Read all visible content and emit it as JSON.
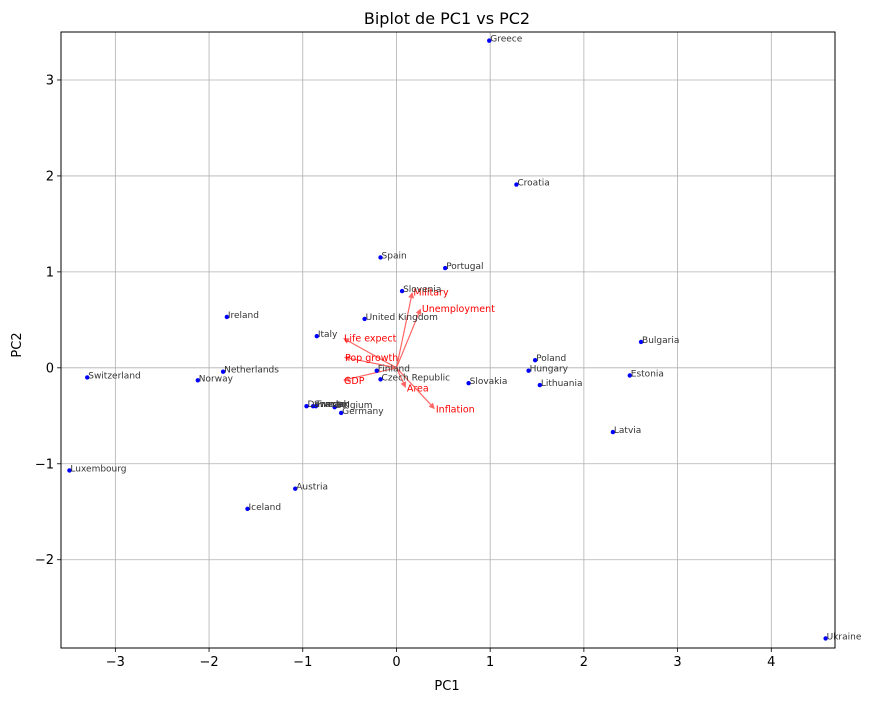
{
  "chart_data": {
    "type": "scatter",
    "title": "Biplot de PC1 vs PC2",
    "xlabel": "PC1",
    "ylabel": "PC2",
    "xlim": [
      -3.58,
      4.68
    ],
    "ylim": [
      -2.92,
      3.5
    ],
    "xticks": [
      -3,
      -2,
      -1,
      0,
      1,
      2,
      3,
      4
    ],
    "yticks": [
      -2,
      -1,
      0,
      1,
      2,
      3
    ],
    "xtick_labels": [
      "−3",
      "−2",
      "−1",
      "0",
      "1",
      "2",
      "3",
      "4"
    ],
    "ytick_labels": [
      "−2",
      "−1",
      "0",
      "1",
      "2",
      "3"
    ],
    "grid": true,
    "point_color": "#0000ff",
    "arrow_color": "#ff6666",
    "arrow_label_color": "#ff0000",
    "points": [
      {
        "label": "Greece",
        "x": 0.99,
        "y": 3.41
      },
      {
        "label": "Croatia",
        "x": 1.28,
        "y": 1.91
      },
      {
        "label": "Spain",
        "x": -0.17,
        "y": 1.15
      },
      {
        "label": "Portugal",
        "x": 0.52,
        "y": 1.04
      },
      {
        "label": "Slovenia",
        "x": 0.06,
        "y": 0.8
      },
      {
        "label": "United Kingdom",
        "x": -0.34,
        "y": 0.51
      },
      {
        "label": "Ireland",
        "x": -1.81,
        "y": 0.53
      },
      {
        "label": "Italy",
        "x": -0.85,
        "y": 0.33
      },
      {
        "label": "Bulgaria",
        "x": 2.61,
        "y": 0.27
      },
      {
        "label": "Poland",
        "x": 1.48,
        "y": 0.08
      },
      {
        "label": "Hungary",
        "x": 1.41,
        "y": -0.03
      },
      {
        "label": "Estonia",
        "x": 2.49,
        "y": -0.08
      },
      {
        "label": "Finland",
        "x": -0.21,
        "y": -0.03
      },
      {
        "label": "Czech Republic",
        "x": -0.17,
        "y": -0.12
      },
      {
        "label": "Slovakia",
        "x": 0.77,
        "y": -0.16
      },
      {
        "label": "Lithuania",
        "x": 1.53,
        "y": -0.18
      },
      {
        "label": "Netherlands",
        "x": -1.85,
        "y": -0.04
      },
      {
        "label": "Switzerland",
        "x": -3.3,
        "y": -0.1
      },
      {
        "label": "Norway",
        "x": -2.12,
        "y": -0.13
      },
      {
        "label": "Denmark",
        "x": -0.96,
        "y": -0.4
      },
      {
        "label": "Sweden",
        "x": -0.89,
        "y": -0.4
      },
      {
        "label": "France",
        "x": -0.86,
        "y": -0.4
      },
      {
        "label": "Belgium",
        "x": -0.66,
        "y": -0.41
      },
      {
        "label": "Germany",
        "x": -0.59,
        "y": -0.47
      },
      {
        "label": "Latvia",
        "x": 2.31,
        "y": -0.67
      },
      {
        "label": "Luxembourg",
        "x": -3.49,
        "y": -1.07
      },
      {
        "label": "Austria",
        "x": -1.08,
        "y": -1.26
      },
      {
        "label": "Iceland",
        "x": -1.59,
        "y": -1.47
      },
      {
        "label": "Ukraine",
        "x": 4.58,
        "y": -2.82
      }
    ],
    "loadings": [
      {
        "label": "Military",
        "x": 0.17,
        "y": 0.79
      },
      {
        "label": "Unemployment",
        "x": 0.26,
        "y": 0.62
      },
      {
        "label": "Life expect",
        "x": -0.57,
        "y": 0.31
      },
      {
        "label": "Pop growth",
        "x": -0.56,
        "y": 0.11
      },
      {
        "label": "GDP",
        "x": -0.57,
        "y": -0.13
      },
      {
        "label": "Area",
        "x": 0.1,
        "y": -0.21
      },
      {
        "label": "Inflation",
        "x": 0.41,
        "y": -0.43
      }
    ]
  }
}
